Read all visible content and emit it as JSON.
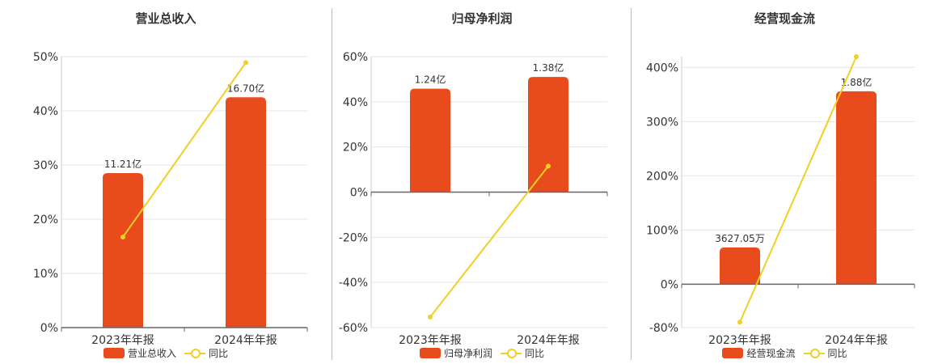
{
  "colors": {
    "bar": "#e84c1c",
    "line": "#f0d020",
    "grid": "#e6e6e6",
    "axis": "#666666"
  },
  "chart_data": [
    {
      "type": "bar",
      "title": "营业总收入",
      "categories": [
        "2023年年报",
        "2024年年报"
      ],
      "series": [
        {
          "name": "营业总收入",
          "type": "bar",
          "values": [
            28.5,
            42.5
          ],
          "labels": [
            "11.21亿",
            "16.70亿"
          ]
        },
        {
          "name": "同比",
          "type": "line",
          "values": [
            16.7,
            48.9
          ]
        }
      ],
      "ylim": [
        0,
        50
      ],
      "yticks": [
        "0%",
        "10%",
        "20%",
        "30%",
        "40%",
        "50%"
      ],
      "ytick_values": [
        0,
        10,
        20,
        30,
        40,
        50
      ],
      "grid": true,
      "legend": "bottom"
    },
    {
      "type": "bar",
      "title": "归母净利润",
      "categories": [
        "2023年年报",
        "2024年年报"
      ],
      "series": [
        {
          "name": "归母净利润",
          "type": "bar",
          "values": [
            45.8,
            51.0
          ],
          "labels": [
            "1.24亿",
            "1.38亿"
          ]
        },
        {
          "name": "同比",
          "type": "line",
          "values": [
            -55.3,
            11.5
          ]
        }
      ],
      "ylim": [
        -60,
        60
      ],
      "yticks": [
        "-60%",
        "-40%",
        "-20%",
        "0%",
        "20%",
        "40%",
        "60%"
      ],
      "ytick_values": [
        -60,
        -40,
        -20,
        0,
        20,
        40,
        60
      ],
      "grid": true,
      "legend": "bottom"
    },
    {
      "type": "bar",
      "title": "经营现金流",
      "categories": [
        "2023年年报",
        "2024年年报"
      ],
      "series": [
        {
          "name": "经营现金流",
          "type": "bar",
          "values": [
            68,
            356
          ],
          "labels": [
            "3627.05万",
            "1.88亿"
          ]
        },
        {
          "name": "同比",
          "type": "line",
          "values": [
            -70,
            420
          ]
        }
      ],
      "ylim": [
        -80,
        420
      ],
      "yticks": [
        "-80%",
        "0%",
        "100%",
        "200%",
        "300%",
        "400%"
      ],
      "ytick_values": [
        -80,
        0,
        100,
        200,
        300,
        400
      ],
      "grid": true,
      "legend": "bottom"
    }
  ]
}
